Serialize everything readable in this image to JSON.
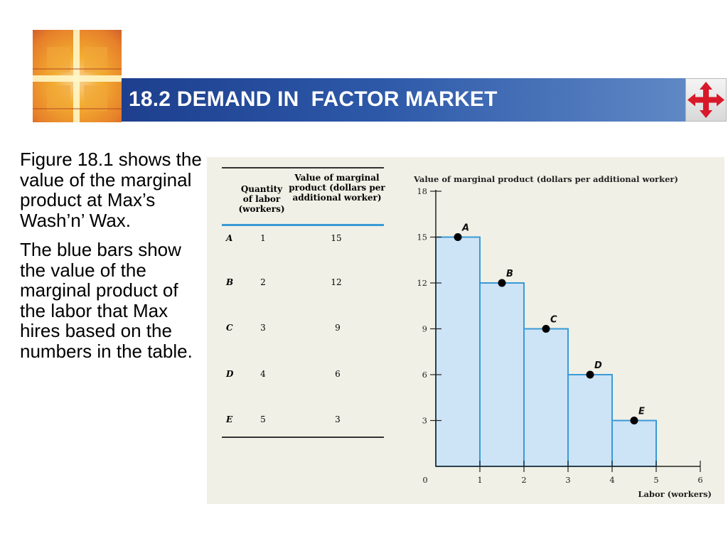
{
  "header": {
    "title": "18.2 DEMAND IN  FACTOR MARKET"
  },
  "body": {
    "paragraph1": "Figure 18.1 shows the value of the marginal product at Max’s Wash’n’ Wax.",
    "paragraph2": "The blue bars show the value of the marginal product of the labor that Max hires based on the numbers in the table."
  },
  "table": {
    "headers": [
      "Quantity of labor (workers)",
      "Value of marginal product (dollars per additional worker)"
    ],
    "rows": [
      {
        "label": "A",
        "quantity": "1",
        "value": "15"
      },
      {
        "label": "B",
        "quantity": "2",
        "value": "12"
      },
      {
        "label": "C",
        "quantity": "3",
        "value": "9"
      },
      {
        "label": "D",
        "quantity": "4",
        "value": "6"
      },
      {
        "label": "E",
        "quantity": "5",
        "value": "3"
      }
    ]
  },
  "chart_data": {
    "type": "bar",
    "ylabel": "Value of marginal product (dollars per additional worker)",
    "xlabel": "Labor (workers)",
    "categories": [
      "1",
      "2",
      "3",
      "4",
      "5"
    ],
    "values": [
      15,
      12,
      9,
      6,
      3
    ],
    "point_labels": [
      "A",
      "B",
      "C",
      "D",
      "E"
    ],
    "xlim": [
      0,
      6
    ],
    "ylim": [
      0,
      18
    ],
    "x_ticks": [
      "0",
      "1",
      "2",
      "3",
      "4",
      "5",
      "6"
    ],
    "y_ticks": [
      "3",
      "6",
      "9",
      "12",
      "15",
      "18"
    ],
    "bar_color": "#cde3f6",
    "bar_edge": "#3a9ad6"
  },
  "colors": {
    "header_blue": "#2d58a8",
    "figure_bg": "#f1f0e6"
  },
  "icons": {
    "logo": "cross-window-logo",
    "nav": "four-arrows-nav-icon"
  }
}
